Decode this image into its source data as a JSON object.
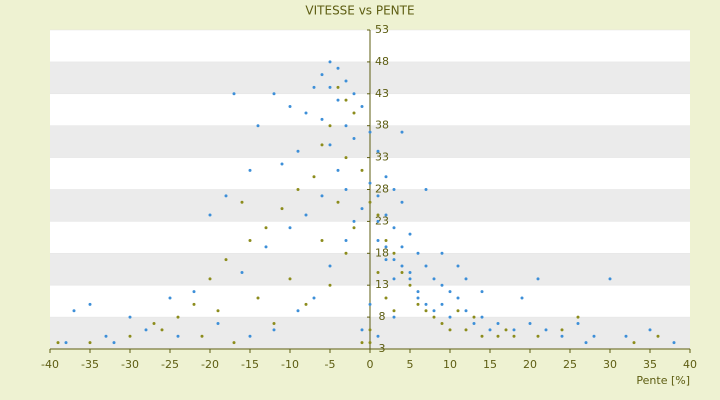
{
  "chart_data": {
    "type": "scatter",
    "title": "VITESSE vs PENTE",
    "x_label": "Pente [%]",
    "xlim": [
      -40,
      40
    ],
    "xticks": [
      -40,
      -35,
      -30,
      -25,
      -20,
      -15,
      -10,
      -5,
      0,
      5,
      10,
      15,
      20,
      25,
      30,
      35,
      40
    ],
    "ylim": [
      3,
      53
    ],
    "yticks": [
      3,
      8,
      13,
      18,
      23,
      28,
      33,
      38,
      43,
      48,
      53
    ],
    "grid": true,
    "series": [
      {
        "color": "#3d8fd8",
        "x": [
          -5,
          -4,
          -6,
          -3,
          -5,
          -2,
          -7,
          -4,
          -1,
          -8,
          -6,
          -3,
          -10,
          -12,
          -14,
          -17,
          0,
          -2,
          -5,
          -9,
          -11,
          -15,
          -18,
          -20,
          1,
          2,
          3,
          4,
          1,
          2,
          3,
          5,
          4,
          6,
          7,
          5,
          8,
          9,
          10,
          6,
          3,
          2,
          1,
          -1,
          -3,
          -4,
          -6,
          -8,
          -10,
          -13,
          -16,
          -22,
          -25,
          -30,
          -35,
          -37,
          -33,
          -28,
          -24,
          -19,
          -15,
          -12,
          -9,
          -7,
          -5,
          -3,
          -2,
          0,
          1,
          2,
          3,
          4,
          5,
          6,
          7,
          8,
          9,
          10,
          11,
          12,
          13,
          14,
          15,
          14,
          12,
          16,
          18,
          20,
          22,
          24,
          26,
          28,
          30,
          32,
          35,
          19,
          21,
          11,
          9,
          4,
          7,
          0,
          -1,
          1,
          3,
          -38,
          -32,
          27,
          38
        ],
        "values": [
          48,
          47,
          46,
          45,
          44,
          43,
          44,
          42,
          41,
          40,
          39,
          38,
          41,
          43,
          38,
          43,
          37,
          36,
          35,
          34,
          32,
          31,
          27,
          24,
          34,
          30,
          28,
          26,
          27,
          24,
          22,
          21,
          19,
          18,
          16,
          15,
          14,
          13,
          12,
          12,
          14,
          17,
          20,
          25,
          28,
          31,
          27,
          24,
          22,
          19,
          15,
          12,
          11,
          8,
          10,
          9,
          5,
          6,
          5,
          7,
          5,
          6,
          9,
          11,
          16,
          20,
          23,
          29,
          23,
          19,
          17,
          16,
          14,
          11,
          10,
          9,
          10,
          8,
          11,
          9,
          7,
          8,
          6,
          12,
          14,
          7,
          6,
          7,
          6,
          5,
          7,
          5,
          14,
          5,
          6,
          11,
          14,
          16,
          18,
          37,
          28,
          10,
          6,
          5,
          8,
          4,
          4,
          4,
          4
        ]
      },
      {
        "color": "#8c8c1c",
        "x": [
          -4,
          -3,
          -2,
          -5,
          -6,
          -3,
          -1,
          -7,
          -9,
          -11,
          -13,
          -15,
          -18,
          -20,
          -22,
          -24,
          -26,
          -21,
          -17,
          -12,
          -8,
          -5,
          -3,
          -2,
          0,
          1,
          2,
          3,
          4,
          5,
          6,
          7,
          8,
          9,
          10,
          12,
          14,
          16,
          17,
          18,
          21,
          24,
          26,
          -30,
          -35,
          -39,
          -27,
          -19,
          -14,
          -10,
          -6,
          -4,
          1,
          2,
          3,
          0,
          -1,
          0,
          33,
          36,
          11,
          13,
          -16
        ],
        "values": [
          44,
          42,
          40,
          38,
          35,
          33,
          31,
          30,
          28,
          25,
          22,
          20,
          17,
          14,
          10,
          8,
          6,
          5,
          4,
          7,
          10,
          13,
          18,
          22,
          26,
          24,
          20,
          18,
          15,
          13,
          10,
          9,
          8,
          7,
          6,
          6,
          5,
          5,
          6,
          5,
          5,
          6,
          8,
          5,
          4,
          4,
          7,
          9,
          11,
          14,
          20,
          26,
          15,
          11,
          9,
          6,
          4,
          4,
          4,
          5,
          9,
          8,
          26
        ]
      }
    ]
  }
}
